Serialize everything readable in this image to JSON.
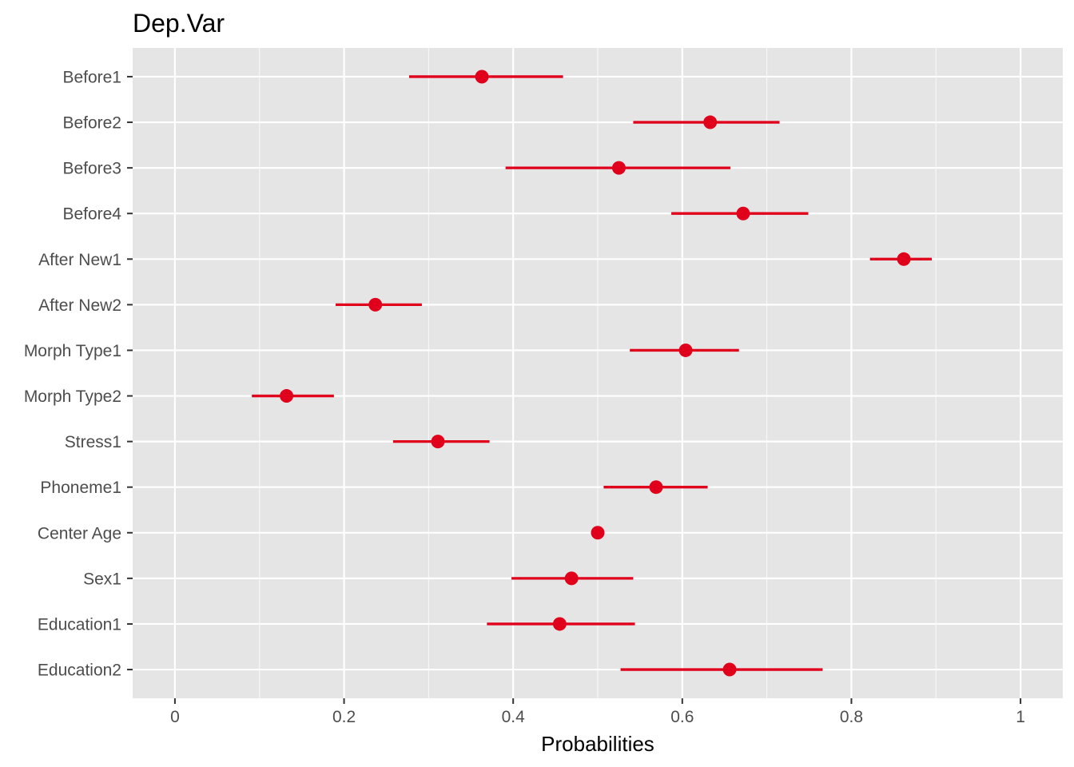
{
  "chart_data": {
    "type": "scatter",
    "subtype": "dot-and-whisker",
    "title": "Dep.Var",
    "xlabel": "Probabilities",
    "ylabel": "",
    "xlim": [
      -0.05,
      1.05
    ],
    "xticks": [
      0,
      0.2,
      0.4,
      0.6,
      0.8,
      1
    ],
    "xtick_labels": [
      "0",
      "0.2",
      "0.4",
      "0.6",
      "0.8",
      "1"
    ],
    "grid": true,
    "legend": "none",
    "colors": {
      "panel": "#e5e5e5",
      "grid_major": "#ffffff",
      "point": "#e0001b",
      "tick_text": "#4d4d4d",
      "text": "#000000"
    },
    "categories": [
      "Before1",
      "Before2",
      "Before3",
      "Before4",
      "After New1",
      "After New2",
      "Morph Type1",
      "Morph Type2",
      "Stress1",
      "Phoneme1",
      "Center Age",
      "Sex1",
      "Education1",
      "Education2"
    ],
    "values": [
      0.363,
      0.633,
      0.525,
      0.672,
      0.862,
      0.237,
      0.604,
      0.132,
      0.311,
      0.569,
      0.5,
      0.469,
      0.455,
      0.656
    ],
    "lower": [
      0.277,
      0.542,
      0.391,
      0.587,
      0.822,
      0.19,
      0.538,
      0.091,
      0.258,
      0.507,
      0.5,
      0.398,
      0.369,
      0.527
    ],
    "upper": [
      0.459,
      0.715,
      0.657,
      0.749,
      0.895,
      0.292,
      0.667,
      0.188,
      0.372,
      0.63,
      0.5,
      0.542,
      0.544,
      0.766
    ]
  }
}
